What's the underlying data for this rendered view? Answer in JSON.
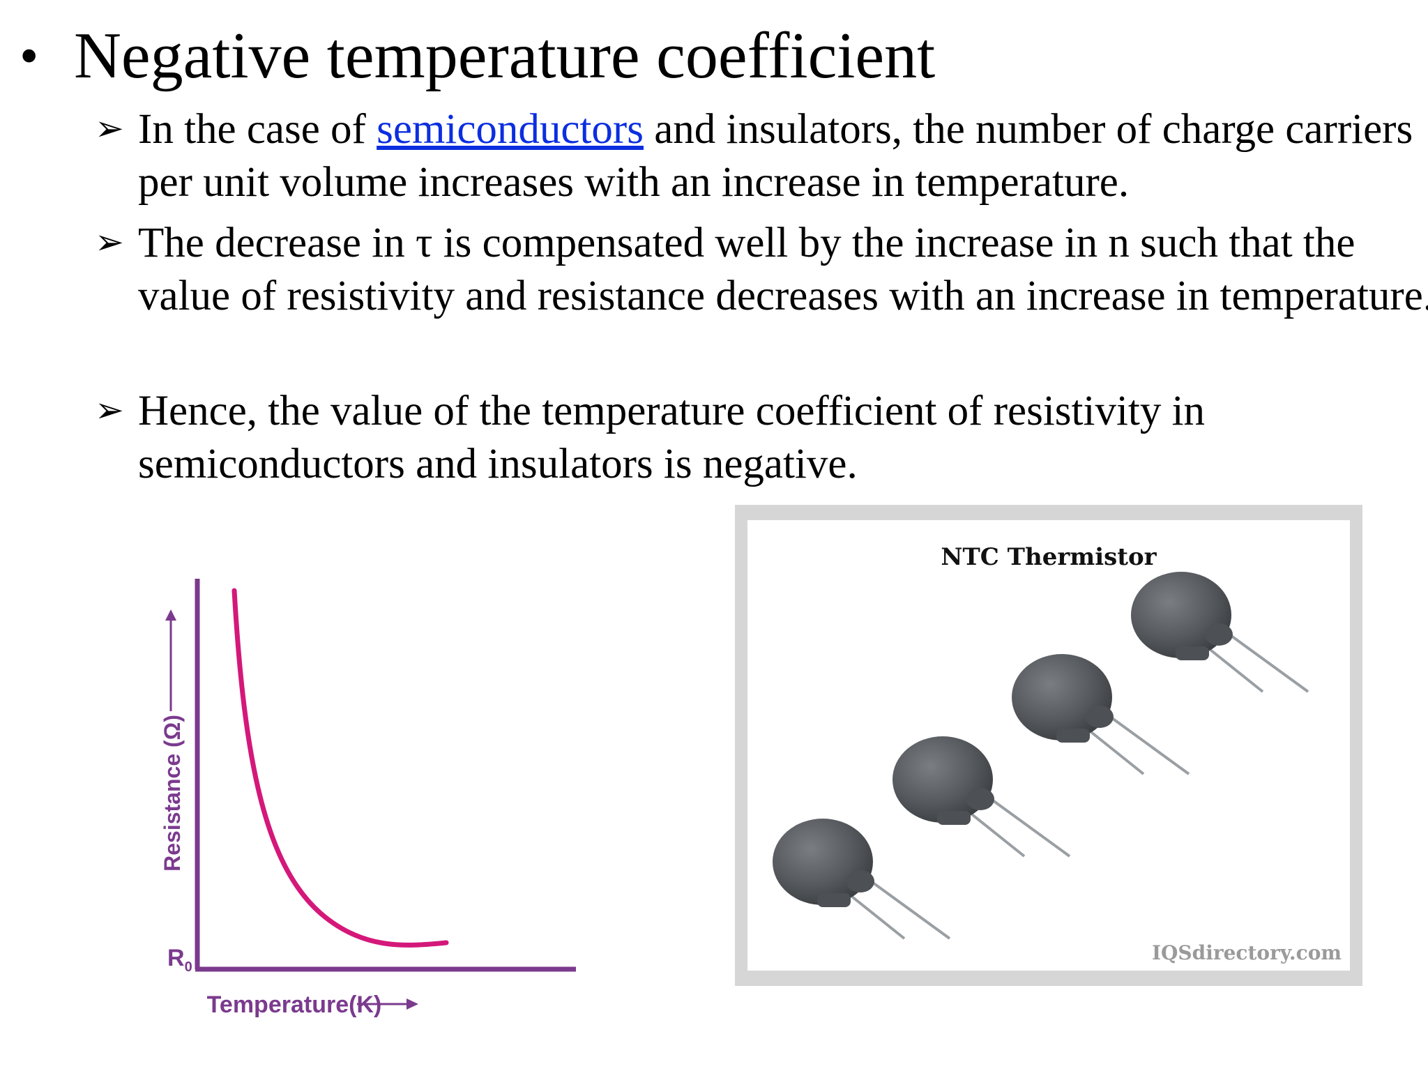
{
  "title": {
    "bullet": "•",
    "text": "Negative temperature coefficient"
  },
  "points": [
    {
      "arrow": "➢",
      "before": "In the case of ",
      "link": "semiconductors",
      "after": " and insulators, the number of charge carriers per unit volume increases with an increase in temperature."
    },
    {
      "arrow": "➢",
      "text": "The decrease in τ is compensated well by the increase in n such that the value of resistivity and resistance decreases with an increase in temperature."
    },
    {
      "arrow": "➢",
      "text": "Hence, the value of the temperature coefficient of resistivity in semiconductors and insulators is negative."
    }
  ],
  "graph": {
    "ylabel": "Resistance (Ω)",
    "xlabel": "Temperature(K)",
    "r0_main": "R",
    "r0_sub": "0",
    "colors": {
      "axis": "#7b3a8e",
      "curve": "#d4187a"
    }
  },
  "photo": {
    "title": "NTC Thermistor",
    "watermark": "IQSdirectory.com"
  }
}
